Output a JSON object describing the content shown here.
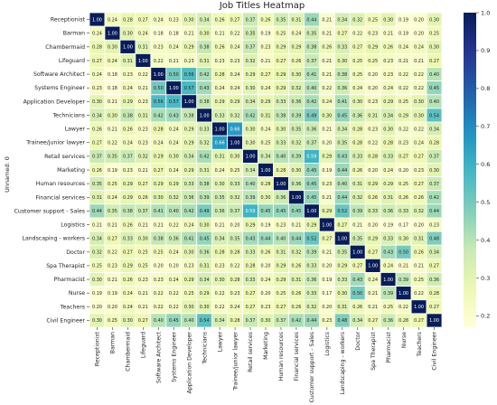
{
  "chart_data": {
    "type": "heatmap",
    "title": "Job Titles Heatmap",
    "ylabel": "Unnamed: 0",
    "xlabel": "",
    "labels": [
      "Receptionist",
      "Barman",
      "Chambermaid",
      "Lifeguard",
      "Software Architect",
      "Systems Engineer",
      "Application Developer",
      "Technicians",
      "Lawyer",
      "Trainee/junior lawyer",
      "Retail services",
      "Marketing",
      "Human resources",
      "Financial services",
      "Customer support - Sales",
      "Logistics",
      "Landscaping - workers",
      "Doctor",
      "Spa Therapist",
      "Pharmacist",
      "Nurse",
      "Teachers",
      "Civil Engineer"
    ],
    "matrix": [
      [
        1.0,
        0.24,
        0.28,
        0.27,
        0.24,
        0.23,
        0.3,
        0.34,
        0.26,
        0.27,
        0.37,
        0.26,
        0.35,
        0.31,
        0.44,
        0.21,
        0.34,
        0.32,
        0.25,
        0.3,
        0.19,
        0.2,
        0.3
      ],
      [
        0.24,
        1.0,
        0.3,
        0.24,
        0.18,
        0.18,
        0.21,
        0.3,
        0.21,
        0.22,
        0.35,
        0.19,
        0.25,
        0.24,
        0.35,
        0.21,
        0.27,
        0.22,
        0.23,
        0.21,
        0.19,
        0.2,
        0.25
      ],
      [
        0.28,
        0.3,
        1.0,
        0.31,
        0.23,
        0.24,
        0.29,
        0.38,
        0.26,
        0.24,
        0.37,
        0.23,
        0.29,
        0.29,
        0.38,
        0.26,
        0.33,
        0.27,
        0.29,
        0.26,
        0.24,
        0.24,
        0.3
      ],
      [
        0.27,
        0.24,
        0.31,
        1.0,
        0.22,
        0.21,
        0.23,
        0.31,
        0.23,
        0.23,
        0.32,
        0.21,
        0.27,
        0.26,
        0.37,
        0.21,
        0.3,
        0.25,
        0.25,
        0.23,
        0.21,
        0.21,
        0.27
      ],
      [
        0.24,
        0.18,
        0.23,
        0.22,
        1.0,
        0.5,
        0.56,
        0.42,
        0.28,
        0.24,
        0.29,
        0.27,
        0.29,
        0.3,
        0.41,
        0.21,
        0.38,
        0.25,
        0.2,
        0.23,
        0.22,
        0.22,
        0.4
      ],
      [
        0.23,
        0.18,
        0.24,
        0.21,
        0.5,
        1.0,
        0.57,
        0.43,
        0.24,
        0.24,
        0.3,
        0.24,
        0.29,
        0.32,
        0.4,
        0.22,
        0.36,
        0.24,
        0.2,
        0.24,
        0.22,
        0.22,
        0.45
      ],
      [
        0.3,
        0.21,
        0.29,
        0.23,
        0.56,
        0.57,
        1.0,
        0.38,
        0.29,
        0.29,
        0.34,
        0.29,
        0.33,
        0.36,
        0.42,
        0.24,
        0.41,
        0.3,
        0.23,
        0.29,
        0.25,
        0.3,
        0.4
      ],
      [
        0.34,
        0.3,
        0.38,
        0.31,
        0.42,
        0.43,
        0.38,
        1.0,
        0.33,
        0.32,
        0.42,
        0.31,
        0.38,
        0.39,
        0.49,
        0.3,
        0.45,
        0.36,
        0.31,
        0.34,
        0.29,
        0.3,
        0.54
      ],
      [
        0.26,
        0.21,
        0.26,
        0.23,
        0.28,
        0.24,
        0.29,
        0.33,
        1.0,
        0.66,
        0.3,
        0.24,
        0.3,
        0.35,
        0.36,
        0.21,
        0.34,
        0.28,
        0.23,
        0.3,
        0.22,
        0.22,
        0.34
      ],
      [
        0.27,
        0.22,
        0.24,
        0.23,
        0.24,
        0.24,
        0.29,
        0.32,
        0.66,
        1.0,
        0.3,
        0.25,
        0.33,
        0.32,
        0.37,
        0.2,
        0.35,
        0.28,
        0.22,
        0.28,
        0.23,
        0.24,
        0.28
      ],
      [
        0.37,
        0.35,
        0.37,
        0.32,
        0.29,
        0.3,
        0.34,
        0.42,
        0.31,
        0.3,
        1.0,
        0.34,
        0.4,
        0.39,
        0.59,
        0.29,
        0.43,
        0.33,
        0.28,
        0.33,
        0.27,
        0.27,
        0.37
      ],
      [
        0.26,
        0.19,
        0.23,
        0.21,
        0.27,
        0.24,
        0.29,
        0.31,
        0.24,
        0.25,
        0.34,
        1.0,
        0.28,
        0.3,
        0.45,
        0.19,
        0.44,
        0.26,
        0.2,
        0.24,
        0.2,
        0.23,
        0.3
      ],
      [
        0.35,
        0.25,
        0.29,
        0.27,
        0.29,
        0.29,
        0.33,
        0.38,
        0.3,
        0.33,
        0.4,
        0.28,
        1.0,
        0.36,
        0.45,
        0.23,
        0.4,
        0.31,
        0.29,
        0.29,
        0.25,
        0.27,
        0.37
      ],
      [
        0.31,
        0.24,
        0.29,
        0.26,
        0.3,
        0.32,
        0.36,
        0.39,
        0.35,
        0.32,
        0.39,
        0.3,
        0.36,
        1.0,
        0.45,
        0.21,
        0.44,
        0.32,
        0.26,
        0.31,
        0.26,
        0.26,
        0.42
      ],
      [
        0.44,
        0.35,
        0.38,
        0.37,
        0.41,
        0.4,
        0.42,
        0.49,
        0.36,
        0.37,
        0.59,
        0.45,
        0.45,
        0.45,
        1.0,
        0.29,
        0.52,
        0.39,
        0.33,
        0.36,
        0.33,
        0.32,
        0.44
      ],
      [
        0.21,
        0.21,
        0.26,
        0.21,
        0.21,
        0.22,
        0.24,
        0.3,
        0.21,
        0.2,
        0.29,
        0.19,
        0.23,
        0.21,
        0.29,
        1.0,
        0.27,
        0.21,
        0.2,
        0.19,
        0.17,
        0.2,
        0.23
      ],
      [
        0.34,
        0.27,
        0.33,
        0.3,
        0.38,
        0.36,
        0.41,
        0.45,
        0.34,
        0.35,
        0.43,
        0.44,
        0.4,
        0.44,
        0.52,
        0.27,
        1.0,
        0.35,
        0.29,
        0.33,
        0.3,
        0.31,
        0.48
      ],
      [
        0.32,
        0.22,
        0.27,
        0.25,
        0.25,
        0.24,
        0.3,
        0.36,
        0.28,
        0.28,
        0.33,
        0.26,
        0.31,
        0.32,
        0.39,
        0.21,
        0.35,
        1.0,
        0.27,
        0.43,
        0.5,
        0.26,
        0.34
      ],
      [
        0.25,
        0.23,
        0.29,
        0.25,
        0.2,
        0.2,
        0.23,
        0.31,
        0.23,
        0.22,
        0.28,
        0.2,
        0.29,
        0.26,
        0.33,
        0.2,
        0.29,
        0.27,
        1.0,
        0.24,
        0.21,
        0.21,
        0.27
      ],
      [
        0.3,
        0.21,
        0.26,
        0.23,
        0.23,
        0.24,
        0.29,
        0.34,
        0.3,
        0.28,
        0.33,
        0.24,
        0.29,
        0.31,
        0.36,
        0.19,
        0.33,
        0.43,
        0.24,
        1.0,
        0.39,
        0.25,
        0.36
      ],
      [
        0.19,
        0.19,
        0.24,
        0.21,
        0.22,
        0.22,
        0.25,
        0.29,
        0.22,
        0.23,
        0.27,
        0.2,
        0.25,
        0.26,
        0.33,
        0.17,
        0.3,
        0.5,
        0.21,
        0.39,
        1.0,
        0.22,
        0.28
      ],
      [
        0.2,
        0.2,
        0.24,
        0.21,
        0.22,
        0.22,
        0.3,
        0.3,
        0.22,
        0.24,
        0.27,
        0.23,
        0.27,
        0.26,
        0.32,
        0.2,
        0.31,
        0.26,
        0.21,
        0.25,
        0.22,
        1.0,
        0.27
      ],
      [
        0.3,
        0.25,
        0.3,
        0.27,
        0.4,
        0.45,
        0.4,
        0.54,
        0.34,
        0.28,
        0.37,
        0.3,
        0.37,
        0.42,
        0.44,
        0.23,
        0.48,
        0.34,
        0.27,
        0.36,
        0.28,
        0.27,
        1.0
      ]
    ],
    "colorbar": {
      "colormap": "YlGnBu",
      "range": [
        0.17,
        1.0
      ],
      "ticks": [
        0.2,
        0.3,
        0.4,
        0.5,
        0.6,
        0.7,
        0.8,
        0.9,
        1.0
      ],
      "tick_labels": [
        "0.2",
        "0.3",
        "0.4",
        "0.5",
        "0.6",
        "0.7",
        "0.8",
        "0.9",
        "1.0"
      ]
    },
    "cell_value_format": "2 decimals",
    "grid_color": "#ffffff"
  }
}
